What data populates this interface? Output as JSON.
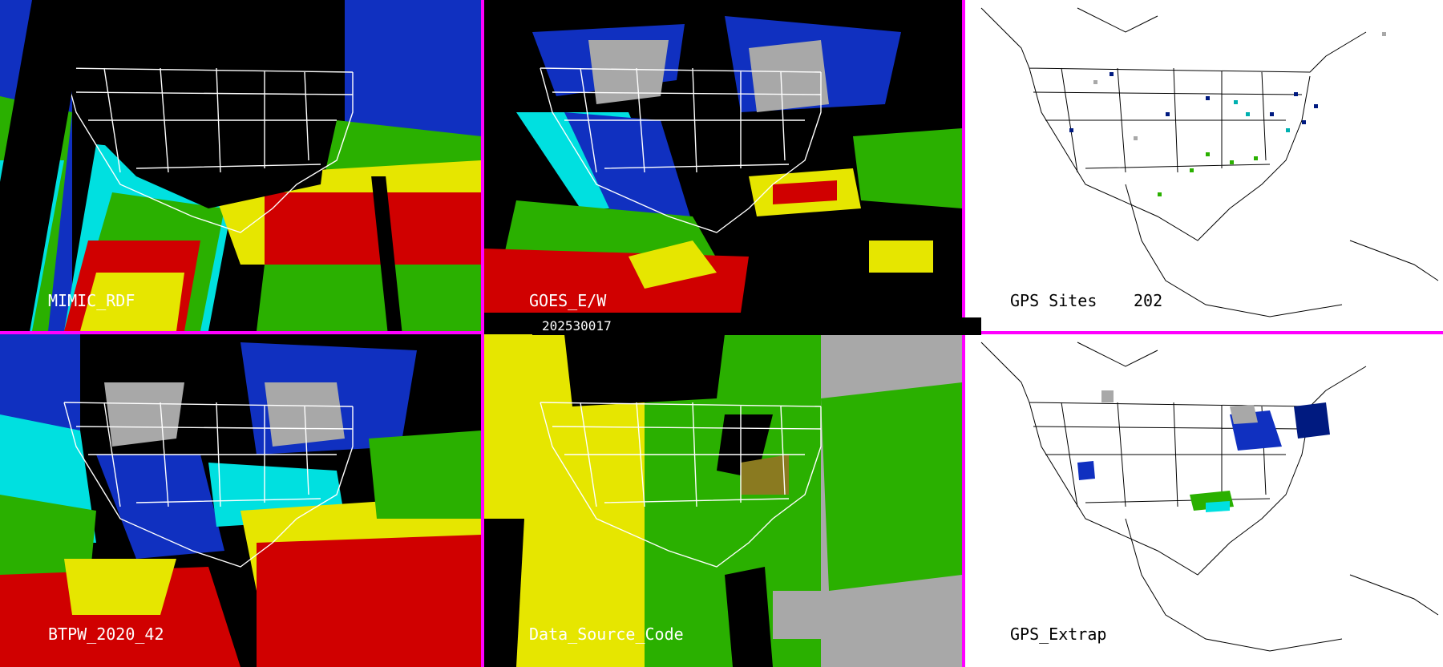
{
  "panels": [
    {
      "id": "p1",
      "label": "MIMIC_RDF",
      "theme": "dark"
    },
    {
      "id": "p2",
      "label": "GOES_E/W",
      "theme": "dark"
    },
    {
      "id": "p3",
      "label": "GPS Sites",
      "count": "202",
      "theme": "light"
    },
    {
      "id": "p4",
      "label": "BTPW_2020_42",
      "theme": "dark"
    },
    {
      "id": "p5",
      "label": "Data_Source_Code",
      "theme": "dark"
    },
    {
      "id": "p6",
      "label": "GPS_Extrap",
      "theme": "light"
    }
  ],
  "timestamp": "202530017",
  "colors": {
    "divider": "#ff00ff",
    "red": "#d00000",
    "yellow": "#e6e600",
    "green": "#2ab000",
    "cyan": "#00e0e0",
    "blue": "#1030c0",
    "navy": "#001a80",
    "gray": "#a8a8a8",
    "white": "#ffffff"
  }
}
